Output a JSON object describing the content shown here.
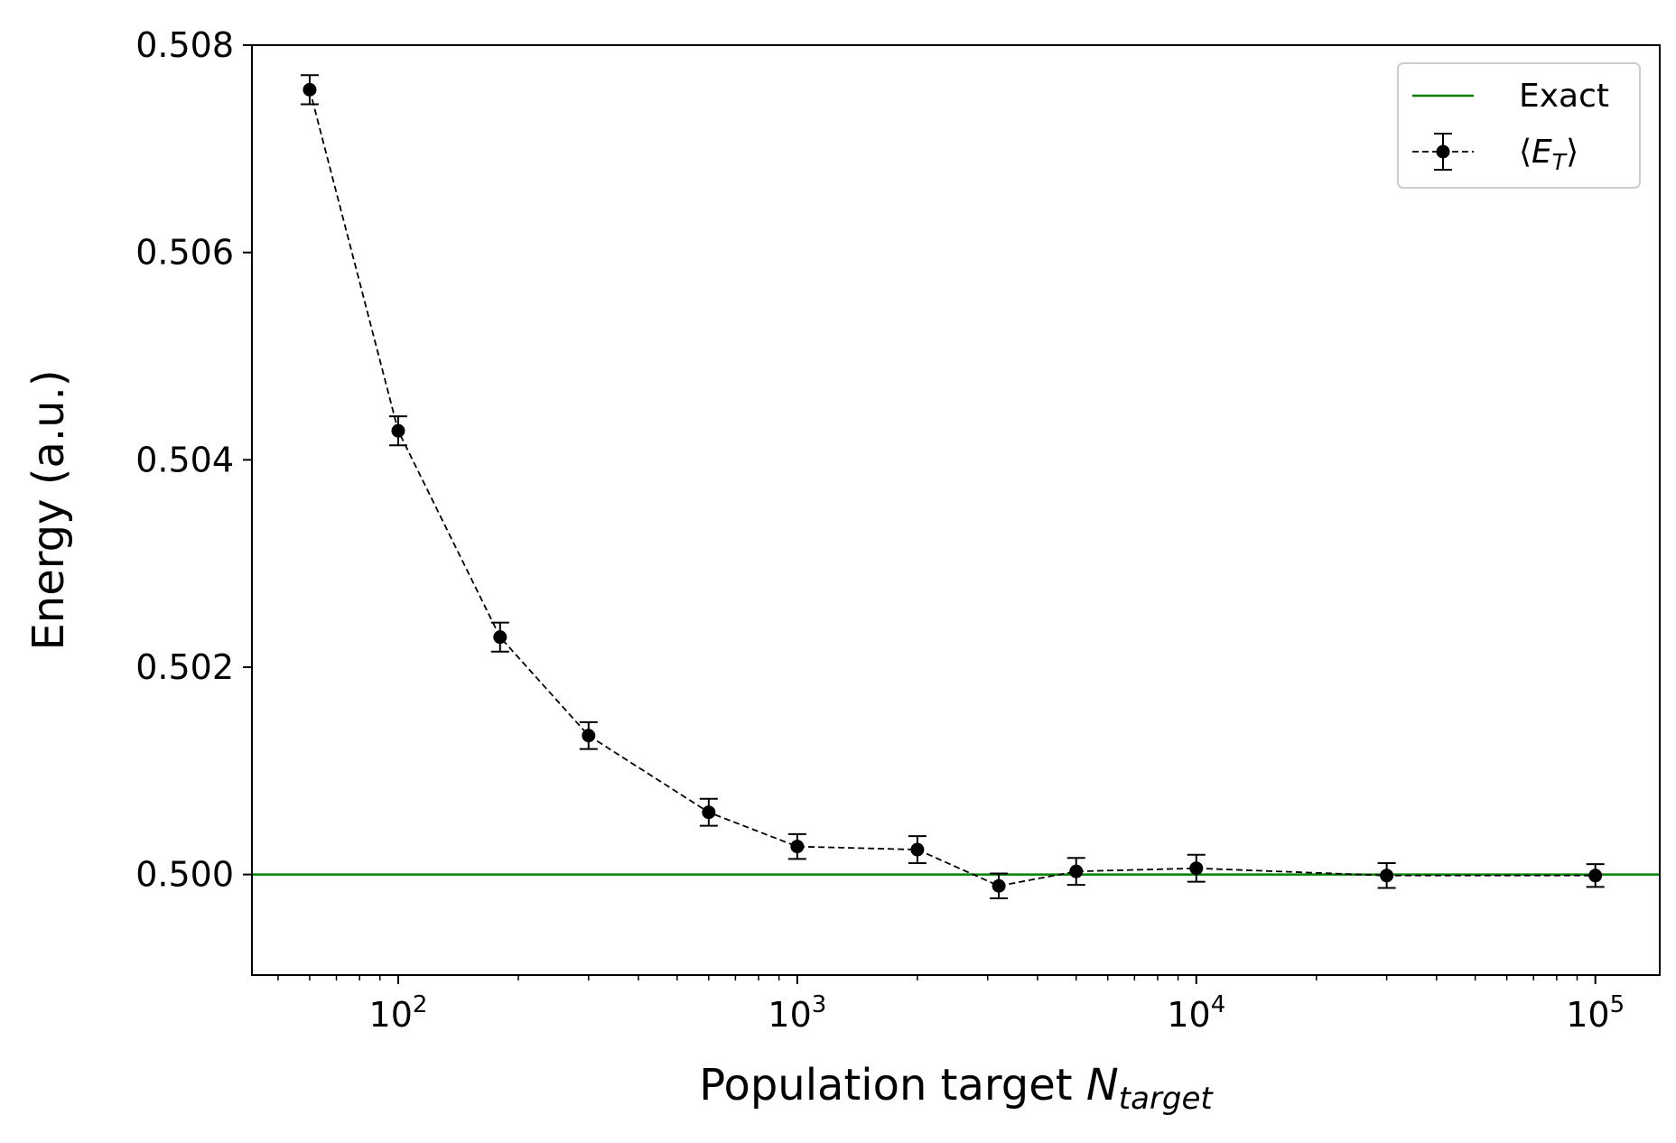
{
  "chart_data": {
    "type": "scatter",
    "xlabel": "Population target",
    "xlabel_symbol": "N",
    "xlabel_subscript": "target",
    "ylabel": "Energy (a.u.)",
    "x_scale": "log",
    "xlim": [
      43,
      145000
    ],
    "ylim": [
      0.49903,
      0.508
    ],
    "y_ticks": [
      0.5,
      0.502,
      0.504,
      0.506,
      0.508
    ],
    "y_tick_labels": [
      "0.500",
      "0.502",
      "0.504",
      "0.506",
      "0.508"
    ],
    "x_ticks": [
      100,
      1000,
      10000,
      100000
    ],
    "x_tick_labels": [
      {
        "base": "10",
        "exp": "2"
      },
      {
        "base": "10",
        "exp": "3"
      },
      {
        "base": "10",
        "exp": "4"
      },
      {
        "base": "10",
        "exp": "5"
      }
    ],
    "grid": false,
    "legend_position": "top-right",
    "series": [
      {
        "name": "Exact",
        "type": "hline",
        "y": 0.5,
        "color": "#008000"
      },
      {
        "name": "⟨E",
        "name_subscript": "T",
        "name_suffix": "⟩",
        "type": "errorbar",
        "line_style": "dashed",
        "color": "#000000",
        "x": [
          60,
          100,
          180,
          300,
          600,
          1000,
          2000,
          3200,
          5000,
          10000,
          30000,
          100000
        ],
        "y": [
          0.50757,
          0.50428,
          0.50229,
          0.50134,
          0.5006,
          0.50027,
          0.50024,
          0.49989,
          0.50003,
          0.50006,
          0.49999,
          0.49999
        ],
        "yerr": [
          0.00014,
          0.00014,
          0.00014,
          0.00013,
          0.00013,
          0.00012,
          0.00013,
          0.00012,
          0.00013,
          0.00013,
          0.00012,
          0.00011
        ]
      }
    ]
  }
}
